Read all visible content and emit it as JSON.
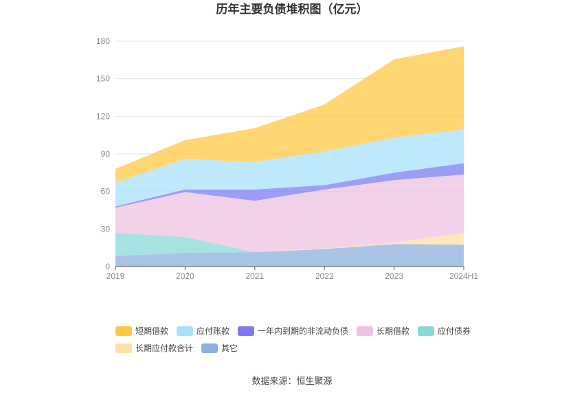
{
  "chart_data": {
    "type": "area",
    "stacked": true,
    "title": "历年主要负债堆积图（亿元）",
    "categories": [
      "2019",
      "2020",
      "2021",
      "2022",
      "2023",
      "2024H1"
    ],
    "ylim": [
      0,
      180
    ],
    "yticks": [
      "0",
      "30",
      "60",
      "90",
      "120",
      "150",
      "180"
    ],
    "grid": true,
    "legend_position": "bottom",
    "series": [
      {
        "name": "其它",
        "color": "#8fb0de",
        "values": [
          8.5,
          11,
          11.5,
          14,
          18,
          17.5
        ]
      },
      {
        "name": "长期应付款合计",
        "color": "#ffe0a6",
        "values": [
          0,
          0,
          0,
          0.5,
          1,
          9.5
        ]
      },
      {
        "name": "应付债券",
        "color": "#8ad8d8",
        "values": [
          18.5,
          12.5,
          0,
          0,
          0,
          0
        ]
      },
      {
        "name": "长期借款",
        "color": "#eec3e2",
        "values": [
          20,
          36,
          41,
          47,
          50,
          46.5
        ]
      },
      {
        "name": "一年内到期的非流动负债",
        "color": "#7c7cf2",
        "values": [
          1,
          2,
          9,
          3.5,
          6,
          9
        ]
      },
      {
        "name": "应付账款",
        "color": "#a8e1fb",
        "values": [
          19,
          24.5,
          22,
          27,
          28,
          27
        ]
      },
      {
        "name": "短期借款",
        "color": "#ffc843",
        "values": [
          11,
          15,
          27,
          37.5,
          62.5,
          66.5
        ]
      }
    ],
    "legend_order": [
      "短期借款",
      "应付账款",
      "一年内到期的非流动负债",
      "长期借款",
      "应付债券",
      "长期应付款合计",
      "其它"
    ]
  },
  "source_text": "数据来源：恒生聚源"
}
